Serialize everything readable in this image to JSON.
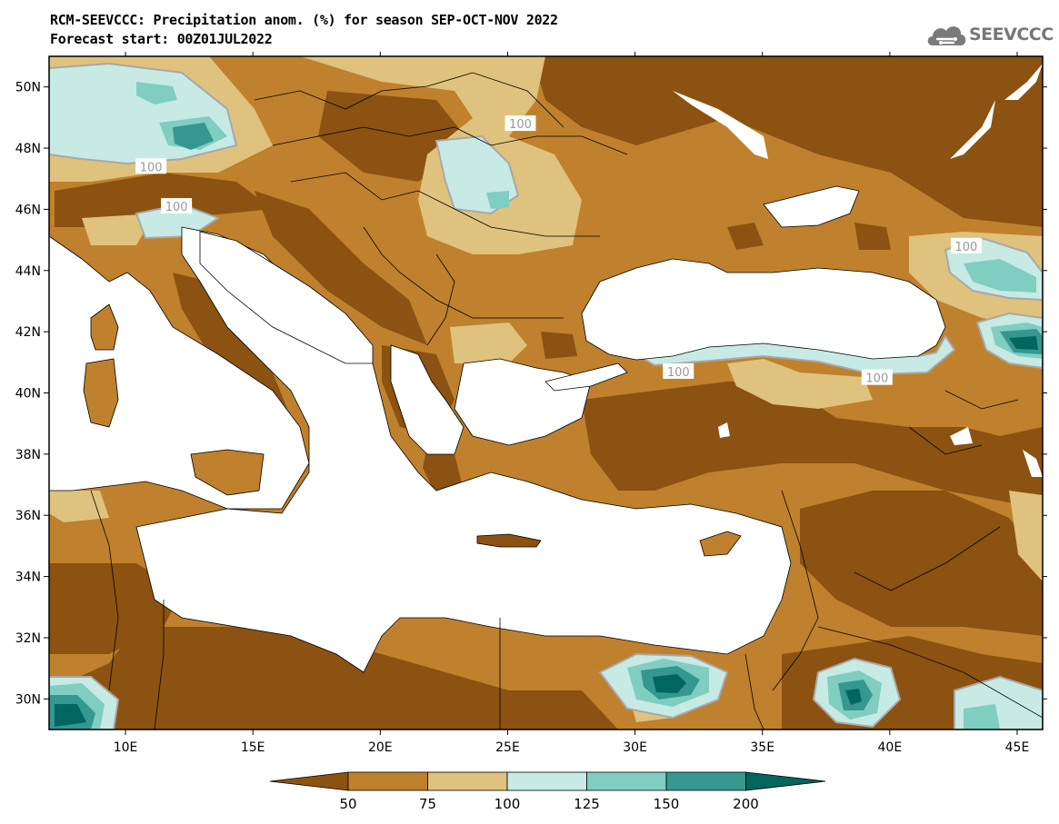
{
  "title": {
    "line1": "RCM-SEEVCCC: Precipitation anom. (%) for season SEP-OCT-NOV 2022",
    "line2": "Forecast start: 00Z01JUL2022"
  },
  "logo": {
    "text": "SEEVCCC",
    "icon": "cloud-logo-icon"
  },
  "colors": {
    "very_dry": "#8b5212",
    "dry": "#bf812d",
    "slightly_dry": "#dfc27d",
    "slightly_wet": "#c7eae5",
    "wet": "#80cdc1",
    "very_wet": "#35978f",
    "extreme_wet": "#01665e",
    "contour": "#a8a8a8",
    "sea": "#ffffff"
  },
  "map": {
    "lon_range": [
      7,
      46
    ],
    "lat_range": [
      29,
      51
    ],
    "x_ticks": [
      "10E",
      "15E",
      "20E",
      "25E",
      "30E",
      "35E",
      "40E",
      "45E"
    ],
    "y_ticks": [
      "50N",
      "48N",
      "46N",
      "44N",
      "42N",
      "40N",
      "38N",
      "36N",
      "34N",
      "32N",
      "30N"
    ],
    "contour_labels": [
      {
        "text": "100",
        "lon": 25.5,
        "lat": 48.8
      },
      {
        "text": "100",
        "lon": 11.0,
        "lat": 47.4
      },
      {
        "text": "100",
        "lon": 12.0,
        "lat": 46.1
      },
      {
        "text": "100",
        "lon": 43.0,
        "lat": 44.8
      },
      {
        "text": "100",
        "lon": 31.7,
        "lat": 40.7
      },
      {
        "text": "100",
        "lon": 39.5,
        "lat": 40.5
      }
    ]
  },
  "colorbar": {
    "labels": [
      "50",
      "75",
      "100",
      "125",
      "150",
      "200"
    ]
  }
}
